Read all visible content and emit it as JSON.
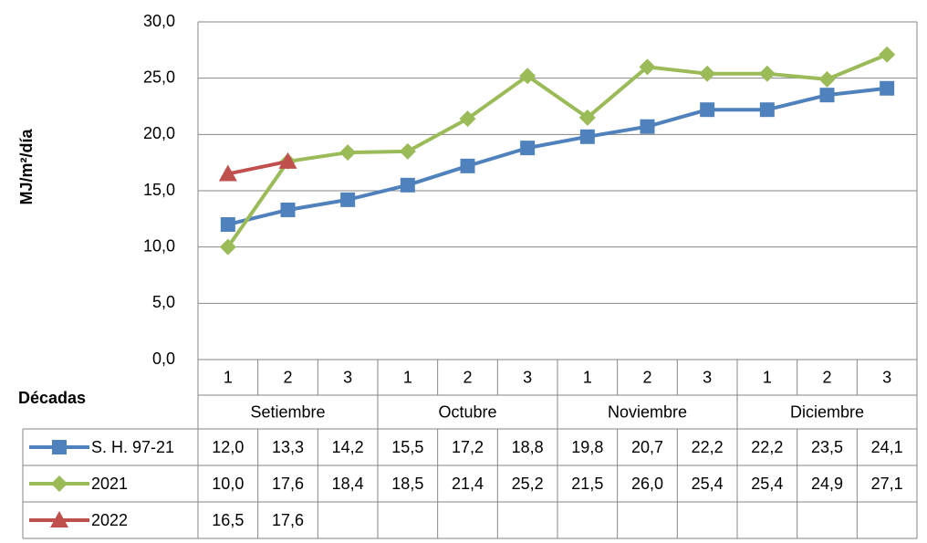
{
  "chart_data": {
    "type": "line",
    "y_label": "MJ/m²/día",
    "x_label": "Décadas",
    "categories": [
      "1",
      "2",
      "3",
      "1",
      "2",
      "3",
      "1",
      "2",
      "3",
      "1",
      "2",
      "3"
    ],
    "groups": [
      "Setiembre",
      "Octubre",
      "Noviembre",
      "Diciembre"
    ],
    "ylim": [
      0,
      30
    ],
    "yticks": [
      {
        "value": 0,
        "label": "0,0"
      },
      {
        "value": 5,
        "label": "5,0"
      },
      {
        "value": 10,
        "label": "10,0"
      },
      {
        "value": 15,
        "label": "15,0"
      },
      {
        "value": 20,
        "label": "20,0"
      },
      {
        "value": 25,
        "label": "25,0"
      },
      {
        "value": 30,
        "label": "30,0"
      }
    ],
    "grid": true,
    "series": [
      {
        "name": "S. H. 97-21",
        "color": "#4f81bd",
        "marker": "square",
        "values": [
          12.0,
          13.3,
          14.2,
          15.5,
          17.2,
          18.8,
          19.8,
          20.7,
          22.2,
          22.2,
          23.5,
          24.1
        ],
        "value_labels": [
          "12,0",
          "13,3",
          "14,2",
          "15,5",
          "17,2",
          "18,8",
          "19,8",
          "20,7",
          "22,2",
          "22,2",
          "23,5",
          "24,1"
        ]
      },
      {
        "name": "2021",
        "color": "#9bbb59",
        "marker": "diamond",
        "values": [
          10.0,
          17.6,
          18.4,
          18.5,
          21.4,
          25.2,
          21.5,
          26.0,
          25.4,
          25.4,
          24.9,
          27.1
        ],
        "value_labels": [
          "10,0",
          "17,6",
          "18,4",
          "18,5",
          "21,4",
          "25,2",
          "21,5",
          "26,0",
          "25,4",
          "25,4",
          "24,9",
          "27,1"
        ]
      },
      {
        "name": "2022",
        "color": "#c0504d",
        "marker": "triangle",
        "values": [
          16.5,
          17.6,
          null,
          null,
          null,
          null,
          null,
          null,
          null,
          null,
          null,
          null
        ],
        "value_labels": [
          "16,5",
          "17,6",
          null,
          null,
          null,
          null,
          null,
          null,
          null,
          null,
          null,
          null
        ]
      }
    ]
  }
}
